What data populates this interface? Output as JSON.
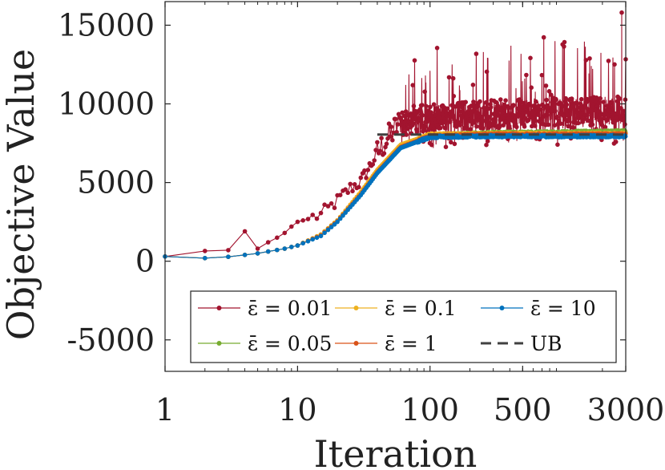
{
  "chart_data": {
    "type": "line",
    "xscale": "log",
    "xlabel": "Iteration",
    "ylabel": "Objective Value",
    "xlim": [
      1,
      3000
    ],
    "ylim": [
      -7000,
      16500
    ],
    "xticks": [
      1,
      10,
      100,
      500,
      3000
    ],
    "xtick_labels": [
      "1",
      "10",
      "100",
      "500",
      "3000"
    ],
    "yticks": [
      -5000,
      0,
      5000,
      10000,
      15000
    ],
    "ytick_labels": [
      "-5000",
      "0",
      "5000",
      "10000",
      "15000"
    ],
    "grid": false,
    "legend_position": "bottom-right",
    "legend_prefix": "ε̄ = ",
    "series": [
      {
        "name": "0.01",
        "color": "#a2142f",
        "style": "noisy-high",
        "points": [
          [
            1,
            300
          ],
          [
            2,
            650
          ],
          [
            3,
            700
          ],
          [
            4,
            1900
          ],
          [
            5,
            800
          ],
          [
            6,
            1200
          ],
          [
            7,
            1500
          ],
          [
            8,
            1800
          ],
          [
            9,
            2200
          ],
          [
            10,
            2500
          ],
          [
            15,
            2900
          ],
          [
            20,
            3800
          ],
          [
            25,
            4600
          ],
          [
            30,
            5000
          ],
          [
            40,
            6800
          ],
          [
            60,
            8800
          ],
          [
            100,
            9000
          ],
          [
            300,
            9300
          ],
          [
            1000,
            9400
          ],
          [
            3000,
            9500
          ]
        ],
        "peak": [
          2800,
          15800
        ]
      },
      {
        "name": "0.05",
        "color": "#77ac30",
        "style": "smooth",
        "points": [
          [
            1,
            300
          ],
          [
            2,
            200
          ],
          [
            3,
            280
          ],
          [
            5,
            500
          ],
          [
            8,
            800
          ],
          [
            10,
            1000
          ],
          [
            15,
            1700
          ],
          [
            20,
            2600
          ],
          [
            30,
            4300
          ],
          [
            40,
            5700
          ],
          [
            60,
            7300
          ],
          [
            100,
            8000
          ],
          [
            300,
            8150
          ],
          [
            1000,
            8200
          ],
          [
            3000,
            8250
          ]
        ]
      },
      {
        "name": "0.1",
        "color": "#edb120",
        "style": "smooth",
        "points": [
          [
            1,
            300
          ],
          [
            2,
            200
          ],
          [
            3,
            280
          ],
          [
            5,
            500
          ],
          [
            8,
            800
          ],
          [
            10,
            1000
          ],
          [
            15,
            1700
          ],
          [
            20,
            2600
          ],
          [
            30,
            4400
          ],
          [
            40,
            5800
          ],
          [
            60,
            7400
          ],
          [
            100,
            8050
          ],
          [
            300,
            8100
          ],
          [
            1000,
            8100
          ],
          [
            3000,
            8100
          ]
        ]
      },
      {
        "name": "1",
        "color": "#d95319",
        "style": "smooth",
        "points": [
          [
            1,
            300
          ],
          [
            2,
            200
          ],
          [
            3,
            280
          ],
          [
            5,
            500
          ],
          [
            8,
            800
          ],
          [
            10,
            1000
          ],
          [
            15,
            1650
          ],
          [
            20,
            2550
          ],
          [
            30,
            4250
          ],
          [
            40,
            5650
          ],
          [
            60,
            7250
          ],
          [
            100,
            7950
          ],
          [
            300,
            8050
          ],
          [
            1000,
            8050
          ],
          [
            3000,
            8050
          ]
        ]
      },
      {
        "name": "10",
        "color": "#0072bd",
        "style": "smooth",
        "points": [
          [
            1,
            300
          ],
          [
            2,
            200
          ],
          [
            3,
            280
          ],
          [
            5,
            500
          ],
          [
            8,
            800
          ],
          [
            10,
            1000
          ],
          [
            15,
            1600
          ],
          [
            20,
            2500
          ],
          [
            30,
            4200
          ],
          [
            40,
            5600
          ],
          [
            60,
            7200
          ],
          [
            100,
            7900
          ],
          [
            300,
            7950
          ],
          [
            1000,
            7950
          ],
          [
            3000,
            7950
          ]
        ]
      }
    ],
    "reference_line": {
      "name": "UB",
      "value": 8050,
      "x_start": 40,
      "x_end": 3000,
      "color": "#404040",
      "dash": true
    }
  },
  "legend": {
    "row1": [
      "ε̄ = 0.01",
      "ε̄ = 0.1",
      "ε̄ = 10"
    ],
    "row2": [
      "ε̄ = 0.05",
      "ε̄ = 1",
      "UB"
    ]
  }
}
